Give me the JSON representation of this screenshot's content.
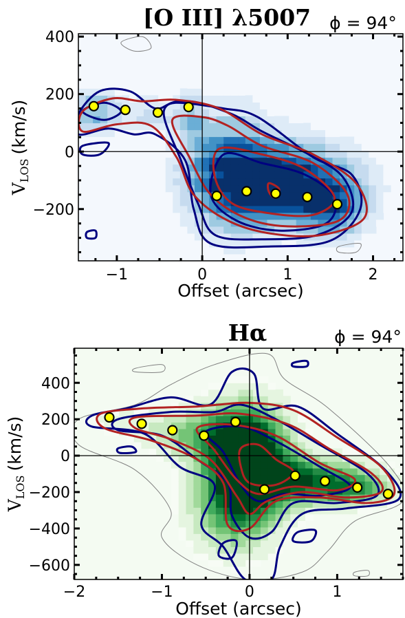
{
  "chart_data": [
    {
      "type": "position-velocity-diagram",
      "title": "[O III] λ5007",
      "angle_label": "ϕ = 94°",
      "xlabel": "Offset (arcsec)",
      "ylabel": "V",
      "ylabel_sub": "LOS",
      "ylabel_unit": "(km/s)",
      "xlim": [
        -1.45,
        2.35
      ],
      "ylim": [
        -380,
        410
      ],
      "xticks": [
        -1,
        0,
        1,
        2
      ],
      "yticks": [
        -200,
        0,
        200,
        400
      ],
      "colormap": "blues",
      "contour_colors": {
        "model": "#b22222",
        "data": "#000080",
        "faint": "#808080"
      },
      "marker_color": "#ffff00",
      "points": [
        {
          "x": -1.27,
          "y": 158
        },
        {
          "x": -0.9,
          "y": 145
        },
        {
          "x": -0.52,
          "y": 136
        },
        {
          "x": -0.16,
          "y": 155
        },
        {
          "x": 0.17,
          "y": -154
        },
        {
          "x": 0.52,
          "y": -138
        },
        {
          "x": 0.86,
          "y": -146
        },
        {
          "x": 1.23,
          "y": -158
        },
        {
          "x": 1.58,
          "y": -183
        }
      ]
    },
    {
      "type": "position-velocity-diagram",
      "title": "Hα",
      "angle_label": "ϕ = 94°",
      "xlabel": "Offset (arcsec)",
      "ylabel": "V",
      "ylabel_sub": "LOS",
      "ylabel_unit": "(km/s)",
      "xlim": [
        -2.0,
        1.75
      ],
      "ylim": [
        -680,
        590
      ],
      "xticks": [
        -2,
        -1,
        0,
        1
      ],
      "yticks": [
        -600,
        -400,
        -200,
        0,
        200,
        400
      ],
      "colormap": "greens",
      "contour_colors": {
        "model": "#b22222",
        "data": "#000080",
        "faint": "#808080"
      },
      "marker_color": "#ffff00",
      "points": [
        {
          "x": -1.6,
          "y": 210
        },
        {
          "x": -1.23,
          "y": 175
        },
        {
          "x": -0.88,
          "y": 140
        },
        {
          "x": -0.52,
          "y": 110
        },
        {
          "x": -0.16,
          "y": 185
        },
        {
          "x": 0.17,
          "y": -185
        },
        {
          "x": 0.52,
          "y": -110
        },
        {
          "x": 0.86,
          "y": -140
        },
        {
          "x": 1.23,
          "y": -175
        },
        {
          "x": 1.58,
          "y": -210
        }
      ]
    }
  ]
}
